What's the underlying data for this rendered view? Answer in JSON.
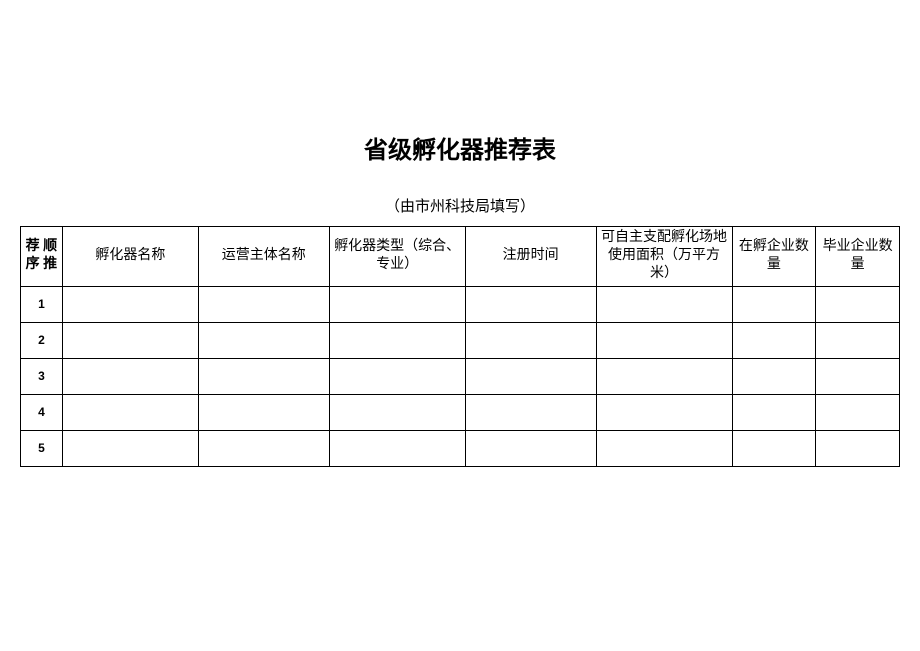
{
  "title": "省级孵化器推荐表",
  "subtitle": "（由市州科技局填写）",
  "table": {
    "columns": [
      {
        "header": "荐\n顺序\n推"
      },
      {
        "header": "孵化器名称"
      },
      {
        "header": "运营主体名称"
      },
      {
        "header": "孵化器类型（综合、专业）"
      },
      {
        "header": "注册时间"
      },
      {
        "header": "可自主支配孵化场地使用面积（万平方米）"
      },
      {
        "header": "在孵企业数量"
      },
      {
        "header": "毕业企业数量"
      }
    ],
    "rows": [
      {
        "num": "1",
        "cells": [
          "",
          "",
          "",
          "",
          "",
          "",
          ""
        ]
      },
      {
        "num": "2",
        "cells": [
          "",
          "",
          "",
          "",
          "",
          "",
          ""
        ]
      },
      {
        "num": "3",
        "cells": [
          "",
          "",
          "",
          "",
          "",
          "",
          ""
        ]
      },
      {
        "num": "4",
        "cells": [
          "",
          "",
          "",
          "",
          "",
          "",
          ""
        ]
      },
      {
        "num": "5",
        "cells": [
          "",
          "",
          "",
          "",
          "",
          "",
          ""
        ]
      }
    ]
  }
}
